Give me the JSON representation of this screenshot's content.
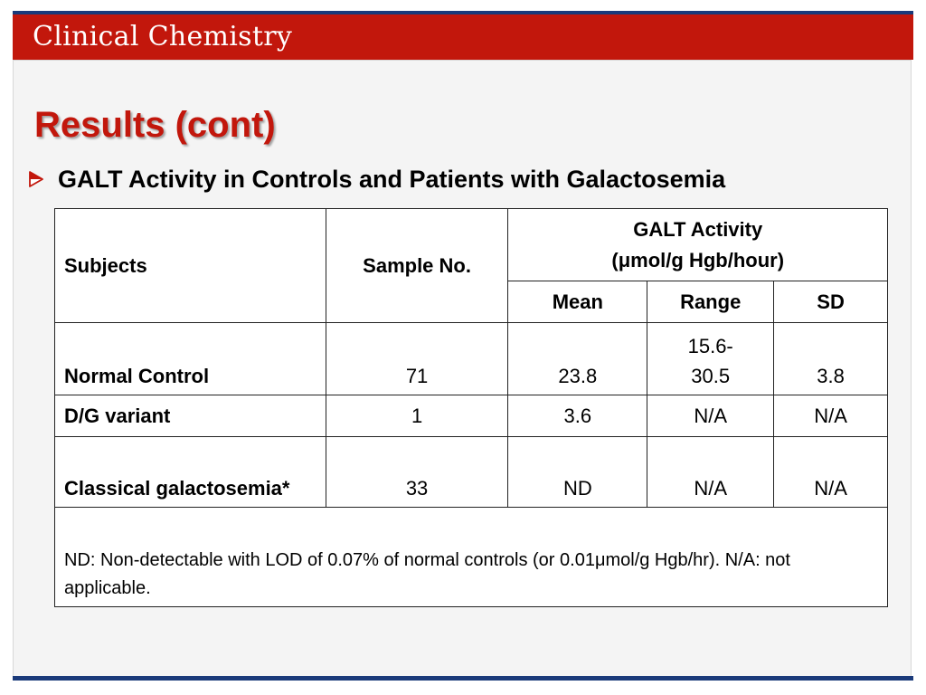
{
  "header": {
    "title": "Clinical Chemistry"
  },
  "slide": {
    "title": "Results (cont)",
    "bullet": "GALT Activity in Controls and Patients with Galactosemia"
  },
  "table": {
    "headers": {
      "subjects": "Subjects",
      "sample": "Sample No.",
      "galt_line1": "GALT Activity",
      "galt_line2": "(μmol/g Hgb/hour)",
      "mean": "Mean",
      "range": "Range",
      "sd": "SD"
    },
    "rows": [
      {
        "subject": "Normal Control",
        "sample": "71",
        "mean": "23.8",
        "range": "15.6-\n30.5",
        "sd": "3.8"
      },
      {
        "subject": "D/G variant",
        "sample": "1",
        "mean": "3.6",
        "range": "N/A",
        "sd": "N/A"
      },
      {
        "subject": "Classical galactosemia*",
        "sample": "33",
        "mean": "ND",
        "range": "N/A",
        "sd": "N/A"
      }
    ],
    "note": "ND: Non-detectable with LOD of 0.07% of normal controls (or 0.01μmol/g Hgb/hr). N/A: not applicable."
  },
  "colors": {
    "header_red": "#c2170c",
    "header_blue": "#1a3a7a",
    "title_red": "#c2170c"
  },
  "icons": {
    "bullet": "arrow-bullet-icon"
  }
}
